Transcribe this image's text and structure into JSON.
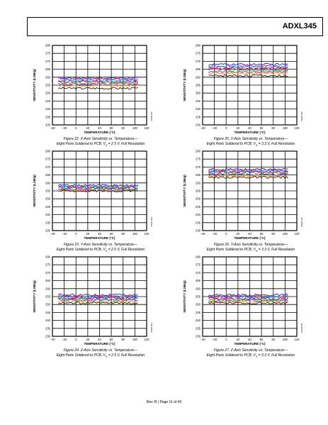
{
  "header": {
    "title": "ADXL345"
  },
  "footer": {
    "text": "Rev. B | Page 11 of 40"
  },
  "chart_data": [
    {
      "type": "line",
      "figure_number": "Figure 22.",
      "caption_line1": "X-Axis Sensitivity vs. Temperature—",
      "caption_line2": "Eight Parts Soldered to PCB, V",
      "caption_sub": "S",
      "caption_tail": " = 2.5 V, Full Resolution",
      "xlabel": "TEMPERATURE (°C)",
      "ylabel": "SENSITIVITY (LSB/g)",
      "xlim": [
        -40,
        120
      ],
      "ylim": [
        230,
        280
      ],
      "xticks": [
        "−40",
        "−20",
        "0",
        "20",
        "40",
        "60",
        "80",
        "100",
        "120"
      ],
      "yticks": [
        "230",
        "235",
        "240",
        "245",
        "250",
        "255",
        "260",
        "265",
        "270",
        "275",
        "280"
      ],
      "code": "07925-022",
      "data_range": [
        -30,
        105
      ],
      "series_levels": [
        259.5,
        258.8,
        258.0,
        257.3,
        256.5,
        255.8,
        255.0,
        253.0
      ],
      "grid": true
    },
    {
      "type": "line",
      "figure_number": "Figure 25.",
      "caption_line1": "X-Axis Sensitivity vs. Temperature—",
      "caption_line2": "Eight Parts Soldered to PCB, V",
      "caption_sub": "S",
      "caption_tail": " = 3.3 V, Full Resolution",
      "xlabel": "TEMPERATURE (°C)",
      "ylabel": "SENSITIVITY (LSB/g)",
      "xlim": [
        -40,
        120
      ],
      "ylim": [
        230,
        280
      ],
      "xticks": [
        "−40",
        "−20",
        "0",
        "20",
        "40",
        "60",
        "80",
        "100",
        "120"
      ],
      "yticks": [
        "230",
        "235",
        "240",
        "245",
        "250",
        "255",
        "260",
        "265",
        "270",
        "275",
        "280"
      ],
      "code": "07925-025",
      "data_range": [
        -30,
        105
      ],
      "series_levels": [
        268.0,
        267.0,
        266.2,
        265.5,
        264.5,
        263.5,
        262.5,
        261.0
      ],
      "grid": true
    },
    {
      "type": "line",
      "figure_number": "Figure 23.",
      "caption_line1": "Y-Axis Sensitivity vs. Temperature—",
      "caption_line2": "Eight Parts Soldered to PCB, V",
      "caption_sub": "S",
      "caption_tail": " = 2.5 V, Full Resolution",
      "xlabel": "TEMPERATURE (°C)",
      "ylabel": "SENSITIVITY (LSB/g)",
      "xlim": [
        -40,
        120
      ],
      "ylim": [
        230,
        280
      ],
      "xticks": [
        "−40",
        "−20",
        "0",
        "20",
        "40",
        "60",
        "80",
        "100",
        "120"
      ],
      "yticks": [
        "230",
        "235",
        "240",
        "245",
        "250",
        "255",
        "260",
        "265",
        "270",
        "275",
        "280"
      ],
      "code": "07925-023",
      "data_range": [
        -30,
        105
      ],
      "series_levels": [
        258.5,
        258.0,
        257.5,
        257.0,
        256.5,
        256.0,
        255.5,
        255.0
      ],
      "grid": true
    },
    {
      "type": "line",
      "figure_number": "Figure 26.",
      "caption_line1": "Y-Axis Sensitivity vs. Temperature—",
      "caption_line2": "Eight Parts Soldered to PCB, V",
      "caption_sub": "S",
      "caption_tail": " = 3.3 V, Full Resolution",
      "xlabel": "TEMPERATURE (°C)",
      "ylabel": "SENSITIVITY (LSB/g)",
      "xlim": [
        -40,
        120
      ],
      "ylim": [
        230,
        280
      ],
      "xticks": [
        "−40",
        "−20",
        "0",
        "20",
        "40",
        "60",
        "80",
        "100",
        "120"
      ],
      "yticks": [
        "230",
        "235",
        "240",
        "245",
        "250",
        "255",
        "260",
        "265",
        "270",
        "275",
        "280"
      ],
      "code": "07925-026",
      "data_range": [
        -30,
        105
      ],
      "series_levels": [
        268.5,
        268.0,
        267.3,
        266.8,
        266.0,
        265.3,
        264.5,
        263.5
      ],
      "grid": true
    },
    {
      "type": "line",
      "figure_number": "Figure 24.",
      "caption_line1": "Z-Axis Sensitivity vs. Temperature—",
      "caption_line2": "Eight Parts Soldered to PCB, V",
      "caption_sub": "S",
      "caption_tail": " = 2.5 V, Full Resolution",
      "xlabel": "TEMPERATURE (°C)",
      "ylabel": "SENSITIVITY (LSB/g)",
      "xlim": [
        -40,
        120
      ],
      "ylim": [
        230,
        280
      ],
      "xticks": [
        "−40",
        "−20",
        "0",
        "20",
        "40",
        "60",
        "80",
        "100",
        "120"
      ],
      "yticks": [
        "230",
        "235",
        "240",
        "245",
        "250",
        "255",
        "260",
        "265",
        "270",
        "275",
        "280"
      ],
      "code": "07925-024",
      "data_range": [
        -30,
        105
      ],
      "series_levels": [
        256.0,
        255.3,
        254.6,
        254.0,
        253.4,
        252.8,
        252.0,
        251.0
      ],
      "grid": true
    },
    {
      "type": "line",
      "figure_number": "Figure 27.",
      "caption_line1": "Z-Axis Sensitivity vs. Temperature—",
      "caption_line2": "Eight Parts Soldered to PCB, V",
      "caption_sub": "S",
      "caption_tail": " = 3.3 V, Full Resolution",
      "xlabel": "TEMPERATURE (°C)",
      "ylabel": "SENSITIVITY (LSB/g)",
      "xlim": [
        -40,
        120
      ],
      "ylim": [
        230,
        280
      ],
      "xticks": [
        "−40",
        "−20",
        "0",
        "20",
        "40",
        "60",
        "80",
        "100",
        "120"
      ],
      "yticks": [
        "230",
        "235",
        "240",
        "245",
        "250",
        "255",
        "260",
        "265",
        "270",
        "275",
        "280"
      ],
      "code": "07925-027",
      "data_range": [
        -30,
        105
      ],
      "series_levels": [
        256.0,
        255.2,
        254.5,
        253.8,
        253.2,
        252.5,
        251.8,
        251.0
      ],
      "grid": true
    }
  ],
  "colors": {
    "series": [
      "#1a1aff",
      "#e0218a",
      "#00a0a0",
      "#c00060",
      "#30b030",
      "#8030c0",
      "#ff7f00",
      "#202020"
    ]
  }
}
